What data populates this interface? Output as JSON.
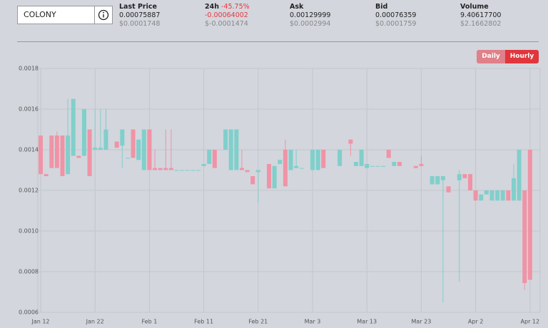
{
  "header": {
    "symbol": "COLONY",
    "stats": [
      {
        "label": "Last Price",
        "value": "0.00075887",
        "usd": "$0.0001748"
      },
      {
        "label": "24h",
        "change": "-45.75%",
        "value": "-0.00064002",
        "usd": "$-0.0001474"
      },
      {
        "label": "Ask",
        "value": "0.00129999",
        "usd": "$0.0002994"
      },
      {
        "label": "Bid",
        "value": "0.00076359",
        "usd": "$0.0001759"
      },
      {
        "label": "Volume",
        "value": "9.40617700",
        "usd": "$2.1662802"
      }
    ],
    "buttons": [
      "Daily",
      "Hourly"
    ]
  },
  "chart_data": {
    "type": "candlestick",
    "up_color": "#80cfcb",
    "down_color": "#f093a6",
    "grid": true,
    "categories": [
      "Jan 12",
      null,
      null,
      null,
      null,
      null,
      null,
      null,
      null,
      null,
      "Jan 22",
      null,
      null,
      null,
      null,
      null,
      null,
      null,
      null,
      null,
      "Feb 1",
      null,
      null,
      null,
      null,
      null,
      null,
      null,
      null,
      null,
      "Feb 11",
      null,
      null,
      null,
      null,
      null,
      null,
      null,
      null,
      null,
      "Feb 21",
      null,
      null,
      null,
      null,
      null,
      null,
      null,
      null,
      null,
      "Mar 3",
      null,
      null,
      null,
      null,
      null,
      null,
      null,
      null,
      null,
      "Mar 13",
      null,
      null,
      null,
      null,
      null,
      null,
      null,
      null,
      null,
      "Mar 23",
      null,
      null,
      null,
      null,
      null,
      null,
      null,
      null,
      null,
      "Apr 2",
      null,
      null,
      null,
      null,
      null,
      null,
      null,
      null,
      null,
      "Apr 12"
    ],
    "open": [
      0.00147,
      0.00128,
      0.00147,
      0.00147,
      0.00147,
      0.00128,
      0.00137,
      0.00137,
      0.00137,
      0.0015,
      0.0014,
      0.0014,
      0.0014,
      null,
      0.00144,
      0.00142,
      0.00136,
      0.0015,
      0.00135,
      0.0013,
      0.0015,
      0.00131,
      0.00131,
      0.00131,
      0.00131,
      0.0013,
      0.0013,
      0.0013,
      0.0013,
      0.0013,
      0.00132,
      0.00133,
      0.0014,
      null,
      0.0014,
      0.0013,
      0.0013,
      0.00131,
      0.0013,
      0.00127,
      0.00129,
      null,
      0.00133,
      0.00121,
      0.00133,
      0.0014,
      0.0013,
      0.00131,
      0.00131,
      null,
      0.0013,
      0.0013,
      0.0014,
      null,
      null,
      0.00132,
      null,
      0.00145,
      0.00132,
      0.00132,
      0.00131,
      0.00132,
      0.00132,
      0.00132,
      0.0014,
      0.00132,
      0.00134,
      null,
      null,
      0.00132,
      0.00133,
      null,
      0.00123,
      0.00123,
      0.00125,
      0.00122,
      null,
      0.00125,
      0.00128,
      0.00128,
      0.0012,
      0.00115,
      0.00118,
      0.00115,
      0.00115,
      0.00115,
      0.0012,
      0.00115,
      0.00115,
      0.0012,
      0.0014
    ],
    "high": [
      0.00147,
      0.00128,
      0.00147,
      0.00149,
      0.00147,
      0.00165,
      0.00165,
      0.00137,
      0.0016,
      0.0015,
      0.0016,
      0.0016,
      0.0016,
      null,
      0.00144,
      0.0015,
      0.00136,
      0.0015,
      0.00145,
      0.0015,
      0.0015,
      0.0014,
      0.00131,
      0.0015,
      0.0015,
      0.0013,
      0.0013,
      0.0013,
      0.0013,
      0.0013,
      0.00133,
      0.0014,
      0.0014,
      null,
      0.0015,
      0.0015,
      0.0015,
      0.0014,
      0.0013,
      0.00127,
      0.0013,
      null,
      0.00133,
      0.00132,
      0.00135,
      0.00145,
      0.0014,
      0.0014,
      0.00131,
      null,
      0.0014,
      0.0014,
      0.0014,
      null,
      null,
      0.0014,
      null,
      0.00145,
      0.00134,
      0.0014,
      0.00133,
      0.00132,
      0.00132,
      0.00132,
      0.0014,
      0.00134,
      0.00134,
      null,
      null,
      0.00132,
      0.00137,
      null,
      0.00127,
      0.00127,
      0.00127,
      0.00122,
      null,
      0.0013,
      0.00128,
      0.00128,
      0.0012,
      0.00118,
      0.0012,
      0.0012,
      0.0012,
      0.0012,
      0.0012,
      0.00133,
      0.0014,
      0.0012,
      0.0014
    ],
    "low": [
      0.00128,
      0.00127,
      0.00131,
      0.00131,
      0.00127,
      0.00128,
      0.00137,
      0.00136,
      0.00137,
      0.00127,
      0.0014,
      0.0014,
      0.0014,
      null,
      0.00141,
      0.00131,
      0.00136,
      0.00136,
      0.00135,
      0.0013,
      0.0013,
      0.0013,
      0.0013,
      0.0013,
      0.0013,
      0.0013,
      0.0013,
      0.0013,
      0.0013,
      0.0013,
      0.00132,
      0.00133,
      0.00131,
      null,
      0.0014,
      0.0013,
      0.0013,
      0.0013,
      0.00129,
      0.00123,
      0.00114,
      null,
      0.00121,
      0.00121,
      0.00133,
      0.00122,
      0.0013,
      0.00131,
      0.00131,
      null,
      0.0013,
      0.0013,
      0.00131,
      null,
      null,
      0.00132,
      null,
      0.00137,
      0.00132,
      0.00132,
      0.00131,
      0.00132,
      0.00132,
      0.00132,
      0.00136,
      0.00132,
      0.00132,
      null,
      null,
      0.00131,
      0.00132,
      null,
      0.00123,
      0.00123,
      0.00065,
      0.00119,
      null,
      0.00075,
      0.00126,
      0.0012,
      0.00115,
      0.00115,
      0.00118,
      0.00115,
      0.00115,
      0.00115,
      0.00115,
      0.00115,
      0.00115,
      0.00071,
      0.00076
    ],
    "close": [
      0.00128,
      0.00127,
      0.00131,
      0.00131,
      0.00127,
      0.00147,
      0.00165,
      0.00136,
      0.0016,
      0.00127,
      0.00141,
      0.00141,
      0.0015,
      null,
      0.00141,
      0.0015,
      0.00136,
      0.00136,
      0.00145,
      0.0015,
      0.0013,
      0.0013,
      0.0013,
      0.0013,
      0.0013,
      0.0013,
      0.0013,
      0.0013,
      0.0013,
      0.0013,
      0.00133,
      0.0014,
      0.00131,
      null,
      0.0015,
      0.0015,
      0.0015,
      0.0013,
      0.00129,
      0.00123,
      0.0013,
      null,
      0.00121,
      0.00132,
      0.00135,
      0.00122,
      0.0014,
      0.00132,
      0.00131,
      null,
      0.0014,
      0.0014,
      0.00131,
      null,
      null,
      0.0014,
      null,
      0.00143,
      0.00134,
      0.0014,
      0.00133,
      0.00132,
      0.00132,
      0.00132,
      0.00136,
      0.00134,
      0.00132,
      null,
      null,
      0.00131,
      0.00132,
      null,
      0.00127,
      0.00127,
      0.00127,
      0.00119,
      null,
      0.00128,
      0.00126,
      0.0012,
      0.00115,
      0.00118,
      0.0012,
      0.0012,
      0.0012,
      0.0012,
      0.00115,
      0.00126,
      0.0014,
      0.000744,
      0.00076
    ],
    "ylim": [
      0.0006,
      0.0018
    ],
    "yticks": [
      0.0006,
      0.0008,
      {
        "value": 0.001,
        "label": "0.0010"
      },
      0.0012,
      0.0014,
      0.0016,
      0.0018
    ]
  }
}
